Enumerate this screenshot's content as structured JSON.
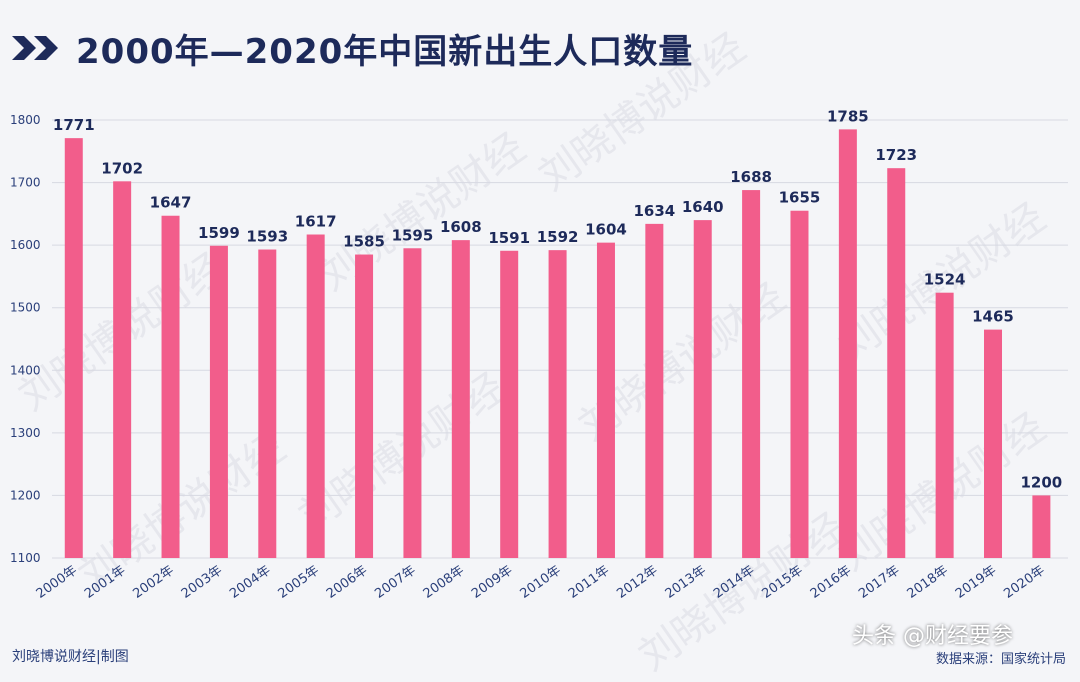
{
  "header": {
    "title": "2000年—2020年中国新出生人口数量"
  },
  "footer": {
    "credit": "刘晓博说财经|制图",
    "source": "数据来源：国家统计局"
  },
  "watermark": {
    "text": "刘晓博说财经",
    "badge": "头条 @财经要参"
  },
  "colors": {
    "bar": "#f25d8b",
    "title": "#1d2a5a",
    "label": "#1d2a5a",
    "tick": "#2a3f7a",
    "grid": "#d7d9e2"
  },
  "chart_data": {
    "type": "bar",
    "categories": [
      "2000年",
      "2001年",
      "2002年",
      "2003年",
      "2004年",
      "2005年",
      "2006年",
      "2007年",
      "2008年",
      "2009年",
      "2010年",
      "2011年",
      "2012年",
      "2013年",
      "2014年",
      "2015年",
      "2016年",
      "2017年",
      "2018年",
      "2019年",
      "2020年"
    ],
    "values": [
      1771,
      1702,
      1647,
      1599,
      1593,
      1617,
      1585,
      1595,
      1608,
      1591,
      1592,
      1604,
      1634,
      1640,
      1688,
      1655,
      1785,
      1723,
      1524,
      1465,
      1200
    ],
    "title": "2000年—2020年中国新出生人口数量",
    "xlabel": "",
    "ylabel": "",
    "ylim": [
      1100,
      1800
    ],
    "yticks": [
      1100,
      1200,
      1300,
      1400,
      1500,
      1600,
      1700,
      1800
    ],
    "grid": true,
    "legend": "none"
  }
}
